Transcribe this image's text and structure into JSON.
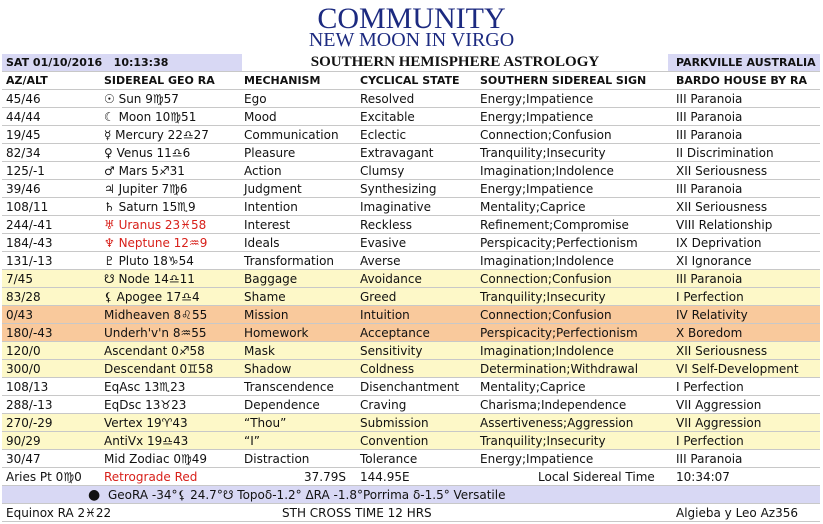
{
  "header": {
    "title": "COMMUNITY",
    "subtitle": "NEW MOON IN VIRGO"
  },
  "info": {
    "datetime": "SAT 01/10/2016   10:13:38",
    "heading": "SOUTHERN HEMISPHERE ASTROLOGY",
    "location": "PARKVILLE AUSTRALIA"
  },
  "table": {
    "columns": [
      "AZ/ALT",
      "SIDEREAL GEO RA",
      "MECHANISM",
      "CYCLICAL STATE",
      "SOUTHERN SIDEREAL SIGN",
      "BARDO HOUSE BY RA"
    ],
    "rows": [
      [
        "45/46",
        "☉ Sun 9♍57",
        "Ego",
        "Resolved",
        "Energy;Impatience",
        "III Paranoia"
      ],
      [
        "44/44",
        "☾ Moon 10♍51",
        "Mood",
        "Excitable",
        "Energy;Impatience",
        "III Paranoia"
      ],
      [
        "19/45",
        "☿ Mercury 22♎27",
        "Communication",
        "Eclectic",
        "Connection;Confusion",
        "III Paranoia"
      ],
      [
        "82/34",
        "♀ Venus 11♎6",
        "Pleasure",
        "Extravagant",
        "Tranquility;Insecurity",
        "II Discrimination"
      ],
      [
        "125/-1",
        "♂ Mars 5♐31",
        "Action",
        "Clumsy",
        "Imagination;Indolence",
        "XII Seriousness"
      ],
      [
        "39/46",
        "♃ Jupiter 7♍6",
        "Judgment",
        "Synthesizing",
        "Energy;Impatience",
        "III Paranoia"
      ],
      [
        "108/11",
        "♄ Saturn 15♏9",
        "Intention",
        "Imaginative",
        "Mentality;Caprice",
        "XII Seriousness"
      ],
      [
        "244/-41",
        "♅ Uranus 23♓58",
        "Interest",
        "Reckless",
        "Refinement;Compromise",
        "VIII Relationship"
      ],
      [
        "184/-43",
        "♆ Neptune 12♒9",
        "Ideals",
        "Evasive",
        "Perspicacity;Perfectionism",
        "IX Deprivation"
      ],
      [
        "131/-13",
        "♇ Pluto 18♑54",
        "Transformation",
        "Averse",
        "Imagination;Indolence",
        "XI Ignorance"
      ],
      [
        "7/45",
        "☋ Node 14♎11",
        "Baggage",
        "Avoidance",
        "Connection;Confusion",
        "III Paranoia"
      ],
      [
        "83/28",
        "⚸ Apogee 17♎4",
        "Shame",
        "Greed",
        "Tranquility;Insecurity",
        "I Perfection"
      ],
      [
        "0/43",
        "Midheaven 8♌55",
        "Mission",
        "Intuition",
        "Connection;Confusion",
        "IV Relativity"
      ],
      [
        "180/-43",
        "Underh'v'n 8♒55",
        "Homework",
        "Acceptance",
        "Perspicacity;Perfectionism",
        "X Boredom"
      ],
      [
        "120/0",
        "Ascendant 0♐58",
        "Mask",
        "Sensitivity",
        "Imagination;Indolence",
        "XII Seriousness"
      ],
      [
        "300/0",
        "Descendant 0♊58",
        "Shadow",
        "Coldness",
        "Determination;Withdrawal",
        "VI Self-Development"
      ],
      [
        "108/13",
        "EqAsc 13♏23",
        "Transcendence",
        "Disenchantment",
        "Mentality;Caprice",
        "I Perfection"
      ],
      [
        "288/-13",
        "EqDsc 13♉23",
        "Dependence",
        "Craving",
        "Charisma;Independence",
        "VII Aggression"
      ],
      [
        "270/-29",
        "Vertex 19♈43",
        "“Thou”",
        "Submission",
        "Assertiveness;Aggression",
        "VII Aggression"
      ],
      [
        "90/29",
        "AntiVx 19♎43",
        "“I”",
        "Convention",
        "Tranquility;Insecurity",
        "I Perfection"
      ],
      [
        "30/47",
        "Mid Zodiac 0♍49",
        "Distraction",
        "Tolerance",
        "Energy;Impatience",
        "III Paranoia"
      ]
    ]
  },
  "footer": {
    "aries": "Aries Pt 0♍0",
    "retrograde": "Retrograde Red",
    "lat": "37.79S",
    "lon": "144.95E",
    "lst_label": "Local Sidereal Time",
    "lst": "10:34:07",
    "line2": "GeoRA -34°⚸ 24.7°☋ Topoδ-1.2° ΔRA -1.8°Porrima δ-1.5° Versatile",
    "equinox": "Equinox RA 2♓22",
    "cross": "STH CROSS TIME 12 HRS",
    "star": "Algieba y Leo Az356"
  }
}
